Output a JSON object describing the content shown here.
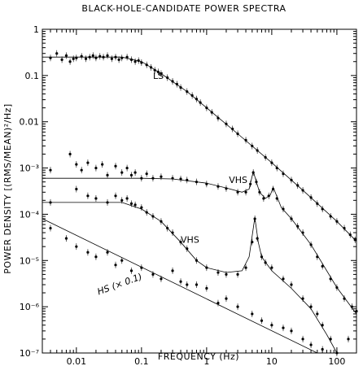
{
  "chart_data": {
    "type": "scatter",
    "title": "BLACK-HOLE-CANDIDATE POWER SPECTRA",
    "xlabel": "FREQUENCY (Hz)",
    "ylabel": "POWER DENSITY [(RMS/MEAN)²/Hz]",
    "x_scale": "log",
    "y_scale": "log",
    "xlim": [
      0.003,
      200
    ],
    "ylim": [
      1e-07,
      1
    ],
    "x_ticks": [
      {
        "value": 0.01,
        "label": "0.01"
      },
      {
        "value": 0.1,
        "label": "0.1"
      },
      {
        "value": 1,
        "label": "1"
      },
      {
        "value": 10,
        "label": "10"
      },
      {
        "value": 100,
        "label": "100"
      }
    ],
    "y_ticks": [
      {
        "value": 1,
        "label": "1"
      },
      {
        "value": 0.1,
        "label": "0.1"
      },
      {
        "value": 0.01,
        "label": "0.01"
      },
      {
        "value": 0.001,
        "label": "10⁻³"
      },
      {
        "value": 0.0001,
        "label": "10⁻⁴"
      },
      {
        "value": 1e-05,
        "label": "10⁻⁵"
      },
      {
        "value": 1e-06,
        "label": "10⁻⁶"
      },
      {
        "value": 1e-07,
        "label": "10⁻⁷"
      }
    ],
    "annotations": [
      {
        "text": "LS",
        "x": 0.15,
        "y": 0.085
      },
      {
        "text": "VHS",
        "x": 2.2,
        "y": 0.00047
      },
      {
        "text": "VHS",
        "x": 0.4,
        "y": 2.4e-05
      },
      {
        "text": "HS (× 0.1)",
        "x": 0.022,
        "y": 1.8e-06
      }
    ],
    "series": [
      {
        "points": [
          [
            0.004,
            0.24
          ],
          [
            0.005,
            0.3
          ],
          [
            0.006,
            0.22
          ],
          [
            0.007,
            0.27
          ],
          [
            0.008,
            0.2
          ],
          [
            0.009,
            0.23
          ],
          [
            0.01,
            0.24
          ],
          [
            0.012,
            0.26
          ],
          [
            0.014,
            0.23
          ],
          [
            0.016,
            0.25
          ],
          [
            0.018,
            0.27
          ],
          [
            0.02,
            0.24
          ],
          [
            0.023,
            0.26
          ],
          [
            0.026,
            0.25
          ],
          [
            0.03,
            0.27
          ],
          [
            0.035,
            0.23
          ],
          [
            0.04,
            0.25
          ],
          [
            0.045,
            0.22
          ],
          [
            0.05,
            0.24
          ],
          [
            0.06,
            0.25
          ],
          [
            0.07,
            0.22
          ],
          [
            0.08,
            0.2
          ],
          [
            0.09,
            0.21
          ],
          [
            0.1,
            0.19
          ],
          [
            0.12,
            0.17
          ],
          [
            0.14,
            0.15
          ],
          [
            0.16,
            0.13
          ],
          [
            0.18,
            0.12
          ],
          [
            0.2,
            0.11
          ],
          [
            0.25,
            0.09
          ],
          [
            0.3,
            0.075
          ],
          [
            0.35,
            0.065
          ],
          [
            0.4,
            0.055
          ],
          [
            0.5,
            0.045
          ],
          [
            0.6,
            0.037
          ],
          [
            0.7,
            0.031
          ],
          [
            0.8,
            0.026
          ],
          [
            1.0,
            0.02
          ],
          [
            1.2,
            0.016
          ],
          [
            1.5,
            0.012
          ],
          [
            2.0,
            0.009
          ],
          [
            2.5,
            0.007
          ],
          [
            3.0,
            0.0055
          ],
          [
            4.0,
            0.004
          ],
          [
            5.0,
            0.003
          ],
          [
            6.0,
            0.0024
          ],
          [
            8.0,
            0.0017
          ],
          [
            10,
            0.0013
          ],
          [
            12,
            0.001
          ],
          [
            15,
            0.00075
          ],
          [
            20,
            0.00055
          ],
          [
            25,
            0.00042
          ],
          [
            30,
            0.00033
          ],
          [
            40,
            0.00023
          ],
          [
            50,
            0.00017
          ],
          [
            60,
            0.00013
          ],
          [
            80,
            9e-05
          ],
          [
            100,
            7e-05
          ],
          [
            130,
            5e-05
          ],
          [
            160,
            3.6e-05
          ],
          [
            190,
            2.8e-05
          ]
        ],
        "model": [
          [
            0.003,
            0.25
          ],
          [
            0.05,
            0.25
          ],
          [
            0.1,
            0.2
          ],
          [
            0.2,
            0.11
          ],
          [
            0.5,
            0.045
          ],
          [
            1,
            0.02
          ],
          [
            3,
            0.0055
          ],
          [
            10,
            0.0013
          ],
          [
            30,
            0.00033
          ],
          [
            100,
            7e-05
          ],
          [
            200,
            2.6e-05
          ]
        ]
      },
      {
        "points": [
          [
            0.004,
            0.0009
          ],
          [
            0.008,
            0.002
          ],
          [
            0.01,
            0.0012
          ],
          [
            0.012,
            0.0009
          ],
          [
            0.015,
            0.0013
          ],
          [
            0.02,
            0.001
          ],
          [
            0.025,
            0.0012
          ],
          [
            0.03,
            0.0007
          ],
          [
            0.04,
            0.0011
          ],
          [
            0.05,
            0.0008
          ],
          [
            0.06,
            0.001
          ],
          [
            0.07,
            0.0007
          ],
          [
            0.08,
            0.0008
          ],
          [
            0.1,
            0.0006
          ],
          [
            0.12,
            0.00075
          ],
          [
            0.15,
            0.0006
          ],
          [
            0.2,
            0.00065
          ],
          [
            0.3,
            0.0006
          ],
          [
            0.4,
            0.00058
          ],
          [
            0.5,
            0.00055
          ],
          [
            0.7,
            0.0005
          ],
          [
            1.0,
            0.00045
          ],
          [
            1.5,
            0.0004
          ],
          [
            2.0,
            0.00036
          ],
          [
            3.0,
            0.0003
          ],
          [
            4.0,
            0.0003
          ],
          [
            4.7,
            0.00045
          ],
          [
            5.2,
            0.0008
          ],
          [
            5.8,
            0.0005
          ],
          [
            6.5,
            0.0003
          ],
          [
            7.5,
            0.00022
          ],
          [
            9.0,
            0.00025
          ],
          [
            10.5,
            0.00035
          ],
          [
            12,
            0.00022
          ],
          [
            15,
            0.00013
          ],
          [
            20,
            8e-05
          ],
          [
            25,
            5.5e-05
          ],
          [
            30,
            4e-05
          ],
          [
            40,
            2.2e-05
          ],
          [
            50,
            1.2e-05
          ],
          [
            60,
            7.5e-06
          ],
          [
            80,
            4e-06
          ],
          [
            100,
            2.6e-06
          ],
          [
            130,
            1.5e-06
          ],
          [
            170,
            1e-06
          ],
          [
            200,
            8e-07
          ]
        ],
        "model": [
          [
            0.003,
            0.0006
          ],
          [
            0.1,
            0.0006
          ],
          [
            0.3,
            0.00058
          ],
          [
            1,
            0.00047
          ],
          [
            2,
            0.00037
          ],
          [
            3.5,
            0.0003
          ],
          [
            4.5,
            0.00035
          ],
          [
            5.2,
            0.00085
          ],
          [
            5.8,
            0.0005
          ],
          [
            6.5,
            0.0003
          ],
          [
            8,
            0.00022
          ],
          [
            9.5,
            0.00026
          ],
          [
            10.5,
            0.00038
          ],
          [
            11.5,
            0.00028
          ],
          [
            14,
            0.00014
          ],
          [
            20,
            8e-05
          ],
          [
            40,
            2.2e-05
          ],
          [
            100,
            2.6e-06
          ],
          [
            200,
            7e-07
          ]
        ]
      },
      {
        "points": [
          [
            0.004,
            0.00018
          ],
          [
            0.01,
            0.00035
          ],
          [
            0.015,
            0.00025
          ],
          [
            0.02,
            0.00022
          ],
          [
            0.03,
            0.00018
          ],
          [
            0.04,
            0.00025
          ],
          [
            0.05,
            0.0002
          ],
          [
            0.06,
            0.00022
          ],
          [
            0.07,
            0.00017
          ],
          [
            0.08,
            0.00016
          ],
          [
            0.1,
            0.00014
          ],
          [
            0.12,
            0.00011
          ],
          [
            0.15,
            9e-05
          ],
          [
            0.2,
            7e-05
          ],
          [
            0.25,
            5e-05
          ],
          [
            0.3,
            4e-05
          ],
          [
            0.4,
            2.5e-05
          ],
          [
            0.5,
            1.8e-05
          ],
          [
            0.7,
            1e-05
          ],
          [
            1.0,
            7e-06
          ],
          [
            1.5,
            5.5e-06
          ],
          [
            2.0,
            5e-06
          ],
          [
            3.0,
            5e-06
          ],
          [
            4.0,
            7e-06
          ],
          [
            5.0,
            2.5e-05
          ],
          [
            5.5,
            8e-05
          ],
          [
            6.0,
            3e-05
          ],
          [
            7.0,
            1.2e-05
          ],
          [
            8.0,
            9e-06
          ],
          [
            10,
            7e-06
          ],
          [
            15,
            4e-06
          ],
          [
            20,
            3e-06
          ],
          [
            30,
            1.5e-06
          ],
          [
            40,
            1e-06
          ],
          [
            50,
            7e-07
          ],
          [
            60,
            4e-07
          ],
          [
            80,
            2e-07
          ]
        ],
        "model": [
          [
            0.003,
            0.00018
          ],
          [
            0.05,
            0.00018
          ],
          [
            0.1,
            0.00013
          ],
          [
            0.2,
            7e-05
          ],
          [
            0.4,
            2.5e-05
          ],
          [
            0.7,
            1e-05
          ],
          [
            1,
            7e-06
          ],
          [
            2,
            5.5e-06
          ],
          [
            3.5,
            6e-06
          ],
          [
            4.5,
            1.2e-05
          ],
          [
            5.5,
            8.5e-05
          ],
          [
            6.2,
            2.5e-05
          ],
          [
            7,
            1.2e-05
          ],
          [
            10,
            6e-06
          ],
          [
            20,
            2.5e-06
          ],
          [
            40,
            9e-07
          ],
          [
            70,
            2.5e-07
          ],
          [
            100,
            1e-07
          ]
        ]
      },
      {
        "points": [
          [
            0.004,
            5e-05
          ],
          [
            0.007,
            3e-05
          ],
          [
            0.01,
            2e-05
          ],
          [
            0.015,
            1.5e-05
          ],
          [
            0.02,
            1.2e-05
          ],
          [
            0.03,
            1.5e-05
          ],
          [
            0.04,
            8e-06
          ],
          [
            0.05,
            1e-05
          ],
          [
            0.07,
            6e-06
          ],
          [
            0.1,
            7e-06
          ],
          [
            0.15,
            5e-06
          ],
          [
            0.2,
            4e-06
          ],
          [
            0.3,
            6e-06
          ],
          [
            0.4,
            3.5e-06
          ],
          [
            0.5,
            3e-06
          ],
          [
            0.7,
            3e-06
          ],
          [
            1.0,
            2.5e-06
          ],
          [
            1.5,
            1.2e-06
          ],
          [
            2.0,
            1.5e-06
          ],
          [
            3.0,
            1e-06
          ],
          [
            5.0,
            7e-07
          ],
          [
            7.0,
            5e-07
          ],
          [
            10,
            4e-07
          ],
          [
            15,
            3.5e-07
          ],
          [
            20,
            3e-07
          ],
          [
            30,
            2e-07
          ],
          [
            40,
            1.5e-07
          ],
          [
            60,
            1.2e-07
          ],
          [
            100,
            1e-07
          ],
          [
            150,
            2e-07
          ]
        ],
        "model": [
          [
            0.003,
            8e-05
          ],
          [
            50,
            1e-07
          ]
        ]
      }
    ]
  }
}
